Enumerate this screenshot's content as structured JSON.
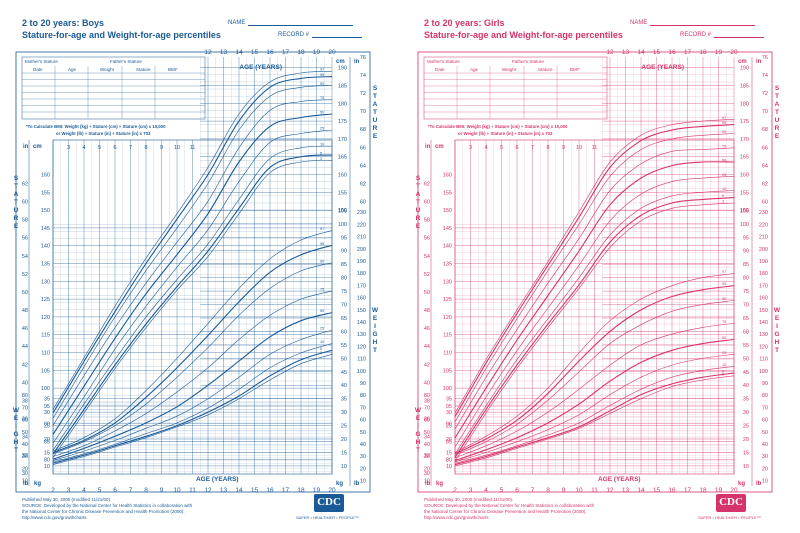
{
  "panels": [
    {
      "id": "boys",
      "title": "2 to 20 years: Boys",
      "subtitle": "Stature-for-age and Weight-for-age percentiles",
      "name_label": "NAME",
      "record_label": "RECORD #",
      "color": "#1a5a96",
      "published": "Published May 30, 2000 (modified 11/21/00).",
      "source_1": "SOURCE: Developed by the National Center for Health Statistics in collaboration with",
      "source_2": "the National Center for Chronic Disease Prevention and Health Promotion (2000).",
      "url": "http://www.cdc.gov/growthcharts"
    },
    {
      "id": "girls",
      "title": "2 to 20 years: Girls",
      "subtitle": "Stature-for-age and Weight-for-age percentiles",
      "name_label": "NAME",
      "record_label": "RECORD #",
      "color": "#d6336c",
      "published": "Published May 30, 2000 (modified 11/21/00).",
      "source_1": "SOURCE: Developed by the National Center for Health Statistics in collaboration with",
      "source_2": "the National Center for Chronic Disease Prevention and Health Promotion (2000).",
      "url": "http://www.cdc.gov/growthcharts"
    }
  ],
  "cdc": {
    "logo": "CDC",
    "tagline": "SAFER • HEALTHIER • PEOPLE™"
  },
  "table": {
    "mothers_stature": "Mother's Stature",
    "fathers_stature": "Father's Stature",
    "columns": [
      "Date",
      "Age",
      "Weight",
      "Stature",
      "BMI*"
    ],
    "bmi_note_1": "*To Calculate BMI: Weight (kg) ÷ Stature (cm) ÷ Stature (cm) x 10,000",
    "bmi_note_2": "or Weight (lb) ÷ Stature (in) ÷ Stature (in) x 703"
  },
  "labels": {
    "age_years": "AGE (YEARS)",
    "stature": "STATURE",
    "weight": "WEIGHT",
    "in": "in",
    "cm": "cm",
    "kg": "kg",
    "lb": "lb"
  },
  "chart_data": [
    {
      "type": "line",
      "title": "2 to 20 years: Boys — Stature-for-age and Weight-for-age percentiles",
      "xlabel": "AGE (YEARS)",
      "xlim": [
        2,
        20
      ],
      "x": [
        2,
        4,
        6,
        8,
        10,
        12,
        14,
        16,
        18,
        20
      ],
      "x_ticks": [
        2,
        3,
        4,
        5,
        6,
        7,
        8,
        9,
        10,
        11,
        12,
        13,
        14,
        15,
        16,
        17,
        18,
        19,
        20
      ],
      "stature_cm_ticks": [
        80,
        85,
        90,
        95,
        100,
        105,
        110,
        115,
        120,
        125,
        130,
        135,
        140,
        145,
        150,
        155,
        160,
        165,
        170,
        175,
        180,
        185,
        190
      ],
      "stature_in_ticks": [
        30,
        32,
        34,
        36,
        38,
        40,
        42,
        44,
        46,
        48,
        50,
        52,
        54,
        56,
        58,
        60,
        62,
        64,
        66,
        68,
        70,
        72,
        74,
        76
      ],
      "weight_kg_ticks": [
        10,
        15,
        20,
        25,
        30,
        35,
        40,
        45,
        50,
        55,
        60,
        65,
        70,
        75,
        80,
        85,
        90,
        95,
        100,
        105
      ],
      "weight_lb_ticks": [
        10,
        20,
        30,
        40,
        50,
        60,
        70,
        80,
        90,
        100,
        110,
        120,
        130,
        140,
        150,
        160,
        170,
        180,
        190,
        200,
        210,
        220,
        230
      ],
      "stature_series": [
        {
          "name": "97",
          "values": [
            94.0,
            108.5,
            123.0,
            136.5,
            149.0,
            162.0,
            177.0,
            186.0,
            188.5,
            189.0
          ]
        },
        {
          "name": "95",
          "values": [
            93.0,
            107.5,
            121.5,
            135.0,
            147.5,
            160.0,
            175.0,
            184.5,
            187.0,
            187.5
          ]
        },
        {
          "name": "90",
          "values": [
            91.5,
            106.0,
            120.0,
            133.0,
            145.0,
            157.5,
            172.5,
            182.0,
            184.5,
            185.0
          ]
        },
        {
          "name": "75",
          "values": [
            89.5,
            103.5,
            117.0,
            129.5,
            141.0,
            152.5,
            167.5,
            178.0,
            180.5,
            181.0
          ]
        },
        {
          "name": "50",
          "values": [
            87.0,
            100.5,
            114.0,
            126.5,
            137.5,
            149.0,
            163.5,
            173.5,
            176.0,
            177.0
          ]
        },
        {
          "name": "25",
          "values": [
            84.5,
            97.5,
            111.0,
            123.0,
            134.0,
            144.5,
            158.0,
            169.0,
            171.5,
            172.5
          ]
        },
        {
          "name": "10",
          "values": [
            82.5,
            95.5,
            108.0,
            120.0,
            130.5,
            140.5,
            153.0,
            164.5,
            167.5,
            168.0
          ]
        },
        {
          "name": "5",
          "values": [
            81.5,
            94.0,
            106.5,
            118.0,
            128.5,
            138.5,
            150.5,
            162.0,
            165.0,
            165.5
          ]
        },
        {
          "name": "3",
          "values": [
            80.5,
            93.0,
            105.5,
            117.0,
            127.5,
            137.0,
            149.0,
            160.5,
            163.5,
            164.0
          ]
        }
      ],
      "weight_series": [
        {
          "name": "97",
          "values": [
            15.5,
            20.5,
            27.5,
            38.0,
            50.0,
            63.0,
            76.0,
            87.0,
            94.0,
            97.5
          ]
        },
        {
          "name": "95",
          "values": [
            15.0,
            19.5,
            26.0,
            35.5,
            46.5,
            58.5,
            71.0,
            82.0,
            88.5,
            92.0
          ]
        },
        {
          "name": "90",
          "values": [
            14.5,
            19.0,
            25.0,
            33.0,
            43.0,
            54.0,
            66.0,
            76.0,
            82.5,
            85.5
          ]
        },
        {
          "name": "75",
          "values": [
            13.5,
            17.5,
            23.0,
            29.5,
            37.5,
            46.5,
            57.0,
            66.0,
            72.0,
            75.0
          ]
        },
        {
          "name": "50",
          "values": [
            12.5,
            16.5,
            21.0,
            26.0,
            32.0,
            40.0,
            49.0,
            58.0,
            64.0,
            67.0
          ]
        },
        {
          "name": "25",
          "values": [
            12.0,
            15.5,
            19.5,
            24.0,
            28.5,
            35.0,
            43.0,
            51.5,
            57.0,
            60.5
          ]
        },
        {
          "name": "10",
          "values": [
            11.5,
            14.5,
            18.0,
            22.0,
            26.0,
            31.5,
            38.5,
            46.5,
            52.0,
            55.5
          ]
        },
        {
          "name": "5",
          "values": [
            11.0,
            14.0,
            17.5,
            21.0,
            25.0,
            30.0,
            36.0,
            43.5,
            49.5,
            53.0
          ]
        },
        {
          "name": "3",
          "values": [
            10.5,
            13.5,
            17.0,
            20.5,
            24.5,
            29.0,
            35.0,
            42.0,
            48.0,
            51.5
          ]
        }
      ]
    },
    {
      "type": "line",
      "title": "2 to 20 years: Girls — Stature-for-age and Weight-for-age percentiles",
      "xlabel": "AGE (YEARS)",
      "xlim": [
        2,
        20
      ],
      "x": [
        2,
        4,
        6,
        8,
        10,
        12,
        14,
        16,
        18,
        20
      ],
      "x_ticks": [
        2,
        3,
        4,
        5,
        6,
        7,
        8,
        9,
        10,
        11,
        12,
        13,
        14,
        15,
        16,
        17,
        18,
        19,
        20
      ],
      "stature_cm_ticks": [
        80,
        85,
        90,
        95,
        100,
        105,
        110,
        115,
        120,
        125,
        130,
        135,
        140,
        145,
        150,
        155,
        160,
        165,
        170,
        175,
        180,
        185,
        190
      ],
      "stature_in_ticks": [
        30,
        32,
        34,
        36,
        38,
        40,
        42,
        44,
        46,
        48,
        50,
        52,
        54,
        56,
        58,
        60,
        62,
        64,
        66,
        68,
        70,
        72,
        74,
        76
      ],
      "weight_kg_ticks": [
        10,
        15,
        20,
        25,
        30,
        35,
        40,
        45,
        50,
        55,
        60,
        65,
        70,
        75,
        80,
        85,
        90,
        95,
        100,
        105
      ],
      "weight_lb_ticks": [
        10,
        20,
        30,
        40,
        50,
        60,
        70,
        80,
        90,
        100,
        110,
        120,
        130,
        140,
        150,
        160,
        170,
        180,
        190,
        200,
        210,
        220,
        230
      ],
      "stature_series": [
        {
          "name": "97",
          "values": [
            93.0,
            108.0,
            122.0,
            135.5,
            149.5,
            163.5,
            171.0,
            174.0,
            175.0,
            175.5
          ]
        },
        {
          "name": "95",
          "values": [
            92.0,
            107.0,
            121.0,
            134.5,
            148.0,
            162.0,
            169.5,
            172.5,
            173.5,
            174.0
          ]
        },
        {
          "name": "90",
          "values": [
            90.5,
            105.5,
            119.5,
            133.0,
            146.0,
            159.5,
            167.0,
            170.0,
            171.0,
            171.5
          ]
        },
        {
          "name": "75",
          "values": [
            88.5,
            103.0,
            116.5,
            129.5,
            142.0,
            155.5,
            163.0,
            166.5,
            167.0,
            167.5
          ]
        },
        {
          "name": "50",
          "values": [
            86.0,
            100.0,
            113.5,
            126.0,
            138.5,
            151.5,
            159.0,
            162.5,
            163.5,
            163.5
          ]
        },
        {
          "name": "25",
          "values": [
            83.5,
            97.5,
            110.5,
            122.5,
            134.5,
            147.0,
            154.5,
            158.0,
            159.0,
            159.5
          ]
        },
        {
          "name": "10",
          "values": [
            81.5,
            95.0,
            108.0,
            119.5,
            131.0,
            143.0,
            150.5,
            154.0,
            155.0,
            155.5
          ]
        },
        {
          "name": "5",
          "values": [
            80.5,
            94.0,
            106.5,
            118.0,
            129.0,
            141.0,
            148.5,
            152.0,
            153.0,
            153.5
          ]
        },
        {
          "name": "3",
          "values": [
            79.5,
            93.0,
            105.5,
            117.0,
            128.0,
            139.5,
            147.0,
            150.5,
            151.5,
            152.0
          ]
        }
      ],
      "weight_series": [
        {
          "name": "97",
          "values": [
            15.0,
            21.0,
            28.5,
            39.0,
            52.0,
            64.0,
            72.0,
            77.0,
            80.0,
            81.5
          ]
        },
        {
          "name": "95",
          "values": [
            14.5,
            20.0,
            27.0,
            37.0,
            49.0,
            60.0,
            68.0,
            73.0,
            75.5,
            77.0
          ]
        },
        {
          "name": "90",
          "values": [
            14.0,
            19.0,
            25.5,
            34.5,
            45.0,
            55.5,
            62.5,
            67.5,
            70.0,
            71.5
          ]
        },
        {
          "name": "75",
          "values": [
            13.0,
            17.5,
            23.0,
            30.0,
            38.5,
            47.5,
            55.0,
            59.0,
            61.5,
            63.0
          ]
        },
        {
          "name": "50",
          "values": [
            12.0,
            16.0,
            20.5,
            26.0,
            33.0,
            41.5,
            48.5,
            53.0,
            55.5,
            57.0
          ]
        },
        {
          "name": "25",
          "values": [
            11.5,
            15.0,
            19.0,
            23.5,
            29.0,
            36.5,
            43.0,
            47.5,
            50.0,
            51.5
          ]
        },
        {
          "name": "10",
          "values": [
            11.0,
            14.0,
            17.5,
            21.5,
            26.0,
            32.5,
            38.5,
            43.0,
            45.5,
            47.0
          ]
        },
        {
          "name": "5",
          "values": [
            10.5,
            13.5,
            17.0,
            20.5,
            24.5,
            30.5,
            36.5,
            40.5,
            43.0,
            44.5
          ]
        },
        {
          "name": "3",
          "values": [
            10.0,
            13.0,
            16.5,
            20.0,
            24.0,
            29.5,
            35.0,
            39.5,
            42.0,
            43.5
          ]
        }
      ]
    }
  ]
}
